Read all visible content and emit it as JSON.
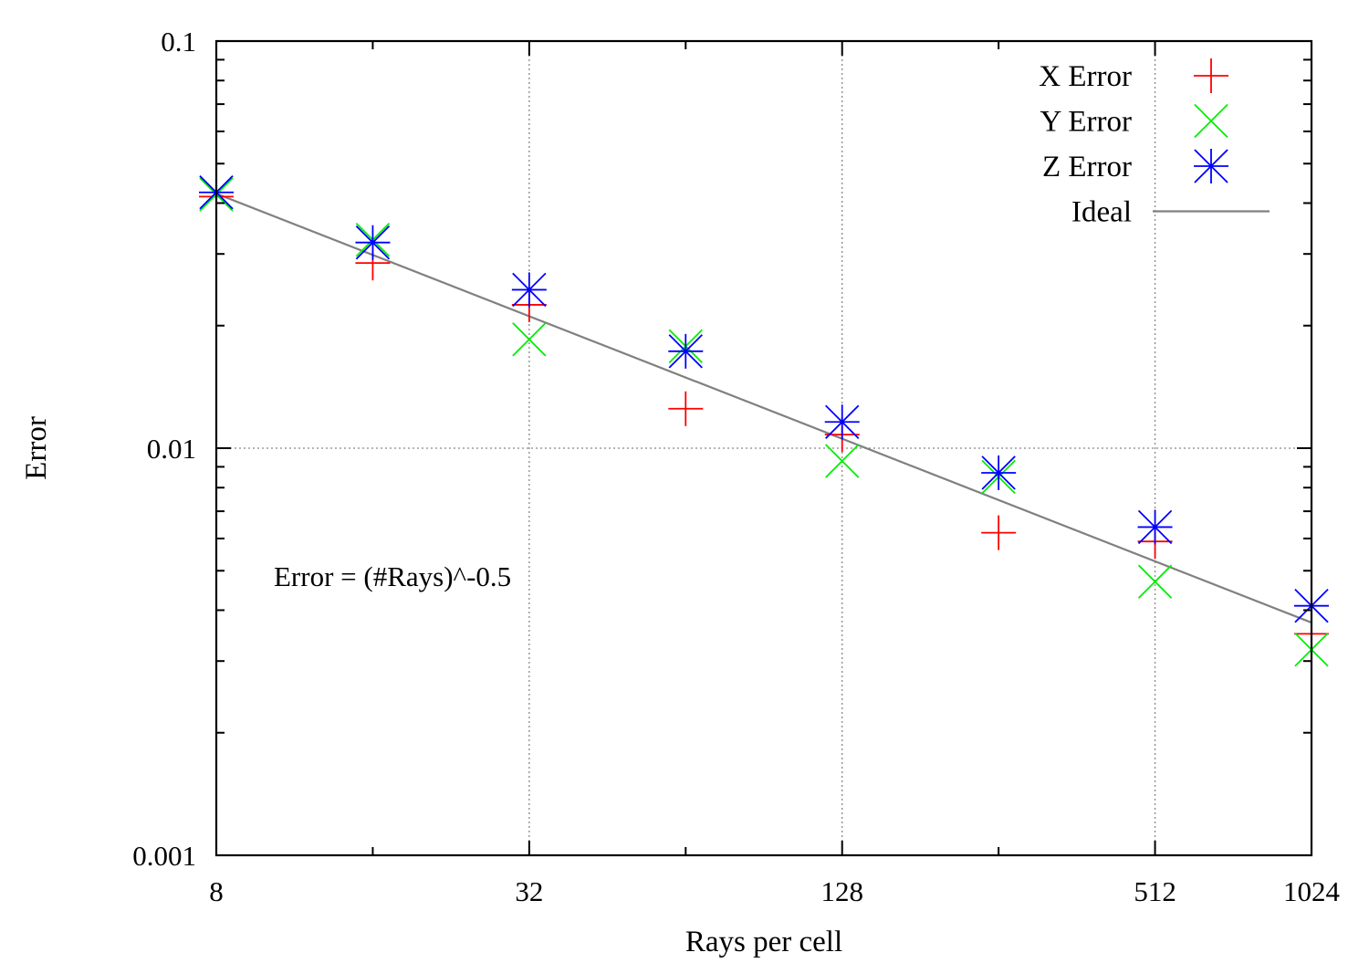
{
  "chart_data": {
    "type": "scatter",
    "title": "",
    "xlabel": "Rays per cell",
    "ylabel": "Error",
    "x_scale": "log2",
    "y_scale": "log10",
    "xlim": [
      8,
      1024
    ],
    "ylim": [
      0.001,
      0.1
    ],
    "x_ticks": [
      8,
      32,
      128,
      512,
      1024
    ],
    "x_tick_labels": [
      "8",
      "32",
      "128",
      "512",
      "1024"
    ],
    "y_ticks": [
      0.001,
      0.01,
      0.1
    ],
    "y_tick_labels": [
      "0.001",
      "0.01",
      "0.1"
    ],
    "grid": "dotted at major ticks",
    "legend_position": "top-right",
    "annotation": "Error = (#Rays)^-0.5",
    "series": [
      {
        "name": "X Error",
        "marker": "plus",
        "color": "#ff0000",
        "x": [
          8,
          16,
          32,
          64,
          128,
          256,
          512,
          1024
        ],
        "y": [
          0.0415,
          0.0285,
          0.0225,
          0.0125,
          0.0108,
          0.0062,
          0.0059,
          0.0035
        ]
      },
      {
        "name": "Y Error",
        "marker": "cross",
        "color": "#00ee00",
        "x": [
          8,
          16,
          32,
          64,
          128,
          256,
          512,
          1024
        ],
        "y": [
          0.042,
          0.0325,
          0.0185,
          0.0178,
          0.0093,
          0.0085,
          0.0047,
          0.0032
        ]
      },
      {
        "name": "Z Error",
        "marker": "star",
        "color": "#0000ff",
        "x": [
          8,
          16,
          32,
          64,
          128,
          256,
          512,
          1024
        ],
        "y": [
          0.0425,
          0.032,
          0.0245,
          0.0173,
          0.0116,
          0.0087,
          0.0064,
          0.0041
        ]
      },
      {
        "name": "Ideal",
        "marker": "line",
        "color": "#808080",
        "x": [
          8,
          1024
        ],
        "y": [
          0.04219,
          0.003729
        ]
      }
    ]
  }
}
